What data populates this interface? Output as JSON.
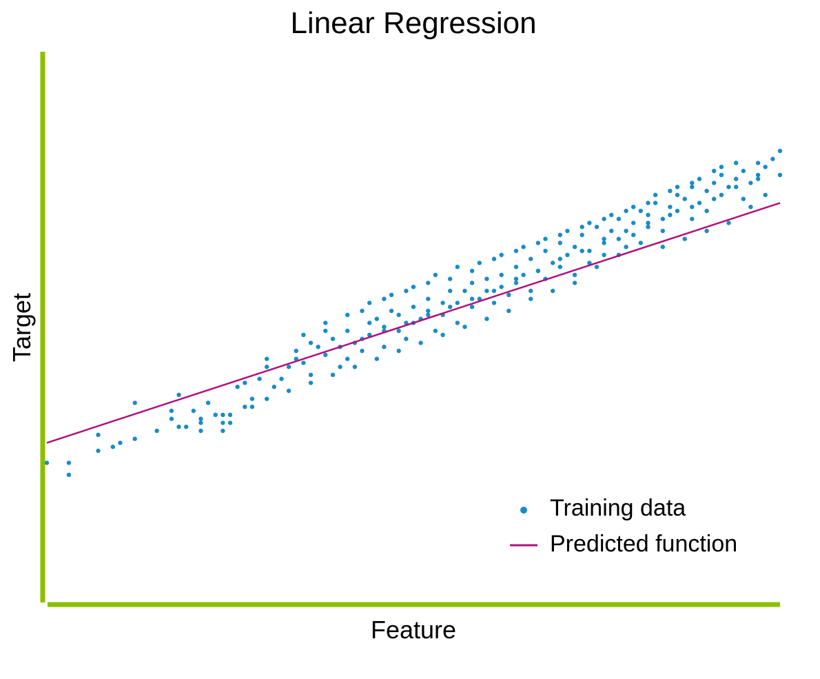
{
  "chart_data": {
    "type": "scatter",
    "title": "Linear Regression",
    "xlabel": "Feature",
    "ylabel": "Target",
    "grid": false,
    "legend_position": "bottom-right",
    "axis_color": "#8cbf00",
    "xlim": [
      0,
      100
    ],
    "ylim": [
      0,
      100
    ],
    "series": [
      {
        "name": "Training data",
        "kind": "scatter",
        "color": "#1a8cc4",
        "points": [
          [
            0,
            17
          ],
          [
            3,
            17
          ],
          [
            3,
            14
          ],
          [
            7,
            24
          ],
          [
            7,
            20
          ],
          [
            10,
            22
          ],
          [
            12,
            32
          ],
          [
            17,
            30
          ],
          [
            17,
            28
          ],
          [
            18,
            34
          ],
          [
            19,
            26
          ],
          [
            20,
            30
          ],
          [
            21,
            27
          ],
          [
            21,
            25
          ],
          [
            22,
            32
          ],
          [
            24,
            27
          ],
          [
            23,
            29
          ],
          [
            24,
            25
          ],
          [
            25,
            27
          ],
          [
            25,
            29
          ],
          [
            26,
            36
          ],
          [
            27,
            37
          ],
          [
            28,
            33
          ],
          [
            28,
            31
          ],
          [
            29,
            38
          ],
          [
            30,
            41
          ],
          [
            30,
            43
          ],
          [
            31,
            36
          ],
          [
            32,
            38
          ],
          [
            33,
            41
          ],
          [
            34,
            43
          ],
          [
            34,
            45
          ],
          [
            35,
            42
          ],
          [
            36,
            39
          ],
          [
            36,
            47
          ],
          [
            37,
            46
          ],
          [
            38,
            44
          ],
          [
            38,
            50
          ],
          [
            39,
            48
          ],
          [
            40,
            41
          ],
          [
            41,
            43
          ],
          [
            41,
            50
          ],
          [
            42,
            47
          ],
          [
            43,
            45
          ],
          [
            44,
            52
          ],
          [
            44,
            49
          ],
          [
            45,
            53
          ],
          [
            46,
            46
          ],
          [
            46,
            51
          ],
          [
            47,
            55
          ],
          [
            48,
            50
          ],
          [
            48,
            54
          ],
          [
            49,
            48
          ],
          [
            50,
            56
          ],
          [
            50,
            52
          ],
          [
            51,
            53
          ],
          [
            52,
            58
          ],
          [
            52,
            55
          ],
          [
            53,
            50
          ],
          [
            54,
            57
          ],
          [
            54,
            54
          ],
          [
            55,
            60
          ],
          [
            56,
            57
          ],
          [
            56,
            52
          ],
          [
            57,
            60
          ],
          [
            58,
            56
          ],
          [
            58,
            62
          ],
          [
            59,
            58
          ],
          [
            60,
            63
          ],
          [
            60,
            60
          ],
          [
            61,
            57
          ],
          [
            62,
            64
          ],
          [
            62,
            61
          ],
          [
            63,
            59
          ],
          [
            64,
            66
          ],
          [
            64,
            62
          ],
          [
            65,
            64
          ],
          [
            66,
            68
          ],
          [
            66,
            60
          ],
          [
            67,
            65
          ],
          [
            68,
            70
          ],
          [
            68,
            63
          ],
          [
            69,
            67
          ],
          [
            70,
            72
          ],
          [
            70,
            66
          ],
          [
            71,
            69
          ],
          [
            72,
            64
          ],
          [
            72,
            71
          ],
          [
            73,
            74
          ],
          [
            74,
            70
          ],
          [
            74,
            67
          ],
          [
            75,
            76
          ],
          [
            76,
            72
          ],
          [
            76,
            69
          ],
          [
            77,
            75
          ],
          [
            78,
            78
          ],
          [
            78,
            73
          ],
          [
            79,
            71
          ],
          [
            80,
            77
          ],
          [
            80,
            74
          ],
          [
            81,
            80
          ],
          [
            82,
            76
          ],
          [
            82,
            79
          ],
          [
            83,
            82
          ],
          [
            84,
            78
          ],
          [
            84,
            75
          ],
          [
            85,
            81
          ],
          [
            86,
            84
          ],
          [
            86,
            80
          ],
          [
            87,
            83
          ],
          [
            88,
            78
          ],
          [
            88,
            86
          ],
          [
            89,
            82
          ],
          [
            90,
            85
          ],
          [
            90,
            80
          ],
          [
            91,
            87
          ],
          [
            92,
            84
          ],
          [
            92,
            89
          ],
          [
            93,
            86
          ],
          [
            94,
            88
          ],
          [
            95,
            90
          ],
          [
            95,
            83
          ],
          [
            96,
            87
          ],
          [
            97,
            92
          ],
          [
            97,
            88
          ],
          [
            98,
            91
          ],
          [
            99,
            93
          ],
          [
            100,
            95
          ],
          [
            100,
            89
          ],
          [
            96,
            81
          ],
          [
            98,
            84
          ],
          [
            93,
            77
          ],
          [
            90,
            75
          ],
          [
            87,
            73
          ],
          [
            84,
            71
          ],
          [
            81,
            72
          ],
          [
            78,
            69
          ],
          [
            75,
            66
          ],
          [
            72,
            62
          ],
          [
            69,
            60
          ],
          [
            66,
            58
          ],
          [
            63,
            55
          ],
          [
            60,
            53
          ],
          [
            57,
            51
          ],
          [
            54,
            49
          ],
          [
            51,
            47
          ],
          [
            48,
            45
          ],
          [
            45,
            43
          ],
          [
            42,
            41
          ],
          [
            39,
            39
          ],
          [
            36,
            37
          ],
          [
            33,
            35
          ],
          [
            30,
            33
          ],
          [
            27,
            31
          ],
          [
            24,
            29
          ],
          [
            21,
            28
          ],
          [
            18,
            26
          ],
          [
            15,
            25
          ],
          [
            12,
            23
          ],
          [
            9,
            21
          ],
          [
            43,
            55
          ],
          [
            46,
            58
          ],
          [
            49,
            60
          ],
          [
            52,
            62
          ],
          [
            55,
            63
          ],
          [
            58,
            65
          ],
          [
            61,
            68
          ],
          [
            64,
            70
          ],
          [
            67,
            72
          ],
          [
            70,
            74
          ],
          [
            73,
            76
          ],
          [
            76,
            78
          ],
          [
            79,
            80
          ],
          [
            82,
            82
          ],
          [
            85,
            85
          ],
          [
            88,
            87
          ],
          [
            91,
            90
          ],
          [
            94,
            92
          ],
          [
            35,
            49
          ],
          [
            38,
            52
          ],
          [
            41,
            54
          ],
          [
            44,
            57
          ],
          [
            47,
            59
          ],
          [
            50,
            61
          ],
          [
            53,
            64
          ],
          [
            56,
            66
          ],
          [
            59,
            67
          ],
          [
            62,
            69
          ],
          [
            65,
            71
          ],
          [
            68,
            73
          ],
          [
            71,
            75
          ],
          [
            74,
            77
          ],
          [
            77,
            79
          ],
          [
            80,
            81
          ],
          [
            83,
            84
          ],
          [
            86,
            86
          ],
          [
            89,
            88
          ],
          [
            92,
            91
          ],
          [
            40,
            46
          ],
          [
            43,
            48
          ],
          [
            46,
            50
          ],
          [
            49,
            52
          ],
          [
            52,
            54
          ],
          [
            55,
            56
          ],
          [
            58,
            58
          ],
          [
            61,
            60
          ],
          [
            64,
            63
          ],
          [
            67,
            65
          ],
          [
            70,
            68
          ],
          [
            73,
            70
          ],
          [
            76,
            73
          ],
          [
            79,
            75
          ],
          [
            82,
            77
          ],
          [
            85,
            79
          ],
          [
            88,
            81
          ],
          [
            91,
            83
          ],
          [
            94,
            86
          ],
          [
            97,
            89
          ]
        ]
      },
      {
        "name": "Predicted function",
        "kind": "line",
        "color": "#b0117f",
        "points": [
          [
            0,
            22
          ],
          [
            100,
            82
          ]
        ]
      }
    ]
  }
}
